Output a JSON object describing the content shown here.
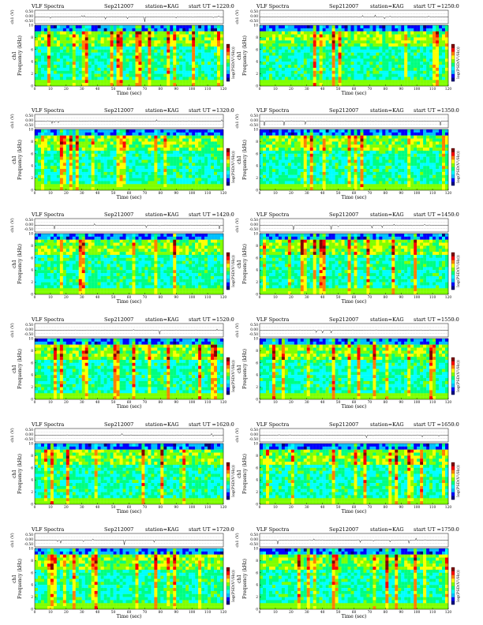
{
  "page": {
    "header_title": "VLF Spectra",
    "date": "Sep212007",
    "station": "station=KAG",
    "start_prefix": "start UT ="
  },
  "labels": {
    "ch_axis": "ch1 (V)",
    "ch1": "ch1",
    "freq_axis": "Frequency (kHz)",
    "time_axis": "Time (sec)",
    "colorbar_axis": "log(PSD(V²/Hz))"
  },
  "colors": {
    "colormap": [
      "#000080",
      "#0000ff",
      "#00bfff",
      "#00ffff",
      "#00ff80",
      "#80ff00",
      "#ffff00",
      "#ff8000",
      "#ff0000",
      "#800000"
    ],
    "trace": "#000000"
  },
  "chart_data": [
    {
      "type": "heatmap",
      "panel": 1,
      "start_ut": "1220:0",
      "xlabel": "Time (sec)",
      "ylabel": "Frequency (kHz)",
      "xlim": [
        0,
        120
      ],
      "ylim": [
        0,
        10
      ],
      "trace_ylim": [
        -0.5,
        0.5
      ],
      "x_ticks": [
        0,
        10,
        20,
        30,
        40,
        50,
        60,
        70,
        80,
        90,
        100,
        110,
        120
      ],
      "y_ticks": [
        0,
        2,
        4,
        6,
        8,
        10
      ],
      "trace_ticks": [
        "0.50",
        "0.00",
        "-0.50"
      ]
    },
    {
      "type": "heatmap",
      "panel": 2,
      "start_ut": "1250:0",
      "xlabel": "Time (sec)",
      "ylabel": "Frequency (kHz)",
      "xlim": [
        0,
        120
      ],
      "ylim": [
        0,
        10
      ],
      "trace_ylim": [
        -0.5,
        0.5
      ],
      "x_ticks": [
        0,
        10,
        20,
        30,
        40,
        50,
        60,
        70,
        80,
        90,
        100,
        110,
        120
      ],
      "y_ticks": [
        0,
        2,
        4,
        6,
        8,
        10
      ],
      "trace_ticks": [
        "0.50",
        "0.00",
        "-0.50"
      ]
    },
    {
      "type": "heatmap",
      "panel": 3,
      "start_ut": "1320:0",
      "xlabel": "Time (sec)",
      "ylabel": "Frequency (kHz)",
      "xlim": [
        0,
        120
      ],
      "ylim": [
        0,
        10
      ],
      "trace_ylim": [
        -0.5,
        0.5
      ],
      "x_ticks": [
        0,
        10,
        20,
        30,
        40,
        50,
        60,
        70,
        80,
        90,
        100,
        110,
        120
      ],
      "y_ticks": [
        0,
        2,
        4,
        6,
        8,
        10
      ],
      "trace_ticks": [
        "0.50",
        "0.00",
        "-0.50"
      ]
    },
    {
      "type": "heatmap",
      "panel": 4,
      "start_ut": "1350:0",
      "xlabel": "Time (sec)",
      "ylabel": "Frequency (kHz)",
      "xlim": [
        0,
        120
      ],
      "ylim": [
        0,
        10
      ],
      "trace_ylim": [
        -0.5,
        0.5
      ],
      "x_ticks": [
        0,
        10,
        20,
        30,
        40,
        50,
        60,
        70,
        80,
        90,
        100,
        110,
        120
      ],
      "y_ticks": [
        0,
        2,
        4,
        6,
        8,
        10
      ],
      "trace_ticks": [
        "0.50",
        "0.00",
        "-0.50"
      ]
    },
    {
      "type": "heatmap",
      "panel": 5,
      "start_ut": "1420:0",
      "xlabel": "Time (sec)",
      "ylabel": "Frequency (kHz)",
      "xlim": [
        0,
        120
      ],
      "ylim": [
        0,
        10
      ],
      "trace_ylim": [
        -0.5,
        0.5
      ],
      "x_ticks": [
        0,
        10,
        20,
        30,
        40,
        50,
        60,
        70,
        80,
        90,
        100,
        110,
        120
      ],
      "y_ticks": [
        0,
        2,
        4,
        6,
        8,
        10
      ],
      "trace_ticks": [
        "0.50",
        "0.00",
        "-0.50"
      ]
    },
    {
      "type": "heatmap",
      "panel": 6,
      "start_ut": "1450:0",
      "xlabel": "Time (sec)",
      "ylabel": "Frequency (kHz)",
      "xlim": [
        0,
        120
      ],
      "ylim": [
        0,
        10
      ],
      "trace_ylim": [
        -0.5,
        0.5
      ],
      "x_ticks": [
        0,
        10,
        20,
        30,
        40,
        50,
        60,
        70,
        80,
        90,
        100,
        110,
        120
      ],
      "y_ticks": [
        0,
        2,
        4,
        6,
        8,
        10
      ],
      "trace_ticks": [
        "0.50",
        "0.00",
        "-0.50"
      ]
    },
    {
      "type": "heatmap",
      "panel": 7,
      "start_ut": "1520:0",
      "xlabel": "Time (sec)",
      "ylabel": "Frequency (kHz)",
      "xlim": [
        0,
        120
      ],
      "ylim": [
        0,
        10
      ],
      "trace_ylim": [
        -0.5,
        0.5
      ],
      "x_ticks": [
        0,
        10,
        20,
        30,
        40,
        50,
        60,
        70,
        80,
        90,
        100,
        110,
        120
      ],
      "y_ticks": [
        0,
        2,
        4,
        6,
        8,
        10
      ],
      "trace_ticks": [
        "0.50",
        "0.00",
        "-0.50"
      ]
    },
    {
      "type": "heatmap",
      "panel": 8,
      "start_ut": "1550:0",
      "xlabel": "Time (sec)",
      "ylabel": "Frequency (kHz)",
      "xlim": [
        0,
        120
      ],
      "ylim": [
        0,
        10
      ],
      "trace_ylim": [
        -0.5,
        0.5
      ],
      "x_ticks": [
        0,
        10,
        20,
        30,
        40,
        50,
        60,
        70,
        80,
        90,
        100,
        110,
        120
      ],
      "y_ticks": [
        0,
        2,
        4,
        6,
        8,
        10
      ],
      "trace_ticks": [
        "0.50",
        "0.00",
        "-0.50"
      ]
    },
    {
      "type": "heatmap",
      "panel": 9,
      "start_ut": "1620:0",
      "xlabel": "Time (sec)",
      "ylabel": "Frequency (kHz)",
      "xlim": [
        0,
        120
      ],
      "ylim": [
        0,
        10
      ],
      "trace_ylim": [
        -0.5,
        0.5
      ],
      "x_ticks": [
        0,
        10,
        20,
        30,
        40,
        50,
        60,
        70,
        80,
        90,
        100,
        110,
        120
      ],
      "y_ticks": [
        0,
        2,
        4,
        6,
        8,
        10
      ],
      "trace_ticks": [
        "0.50",
        "0.00",
        "-0.50"
      ]
    },
    {
      "type": "heatmap",
      "panel": 10,
      "start_ut": "1650:0",
      "xlabel": "Time (sec)",
      "ylabel": "Frequency (kHz)",
      "xlim": [
        0,
        120
      ],
      "ylim": [
        0,
        10
      ],
      "trace_ylim": [
        -0.5,
        0.5
      ],
      "x_ticks": [
        0,
        10,
        20,
        30,
        40,
        50,
        60,
        70,
        80,
        90,
        100,
        110,
        120
      ],
      "y_ticks": [
        0,
        2,
        4,
        6,
        8,
        10
      ],
      "trace_ticks": [
        "0.50",
        "0.00",
        "-0.50"
      ]
    },
    {
      "type": "heatmap",
      "panel": 11,
      "start_ut": "1720:0",
      "xlabel": "Time (sec)",
      "ylabel": "Frequency (kHz)",
      "xlim": [
        0,
        120
      ],
      "ylim": [
        0,
        10
      ],
      "trace_ylim": [
        -0.5,
        0.5
      ],
      "x_ticks": [
        0,
        10,
        20,
        30,
        40,
        50,
        60,
        70,
        80,
        90,
        100,
        110,
        120
      ],
      "y_ticks": [
        0,
        2,
        4,
        6,
        8,
        10
      ],
      "trace_ticks": [
        "0.50",
        "0.00",
        "-0.50"
      ]
    },
    {
      "type": "heatmap",
      "panel": 12,
      "start_ut": "1750:0",
      "xlabel": "Time (sec)",
      "ylabel": "Frequency (kHz)",
      "xlim": [
        0,
        120
      ],
      "ylim": [
        0,
        10
      ],
      "trace_ylim": [
        -0.5,
        0.5
      ],
      "x_ticks": [
        0,
        10,
        20,
        30,
        40,
        50,
        60,
        70,
        80,
        90,
        100,
        110,
        120
      ],
      "y_ticks": [
        0,
        2,
        4,
        6,
        8,
        10
      ],
      "trace_ticks": [
        "0.50",
        "0.00",
        "-0.50"
      ]
    }
  ]
}
